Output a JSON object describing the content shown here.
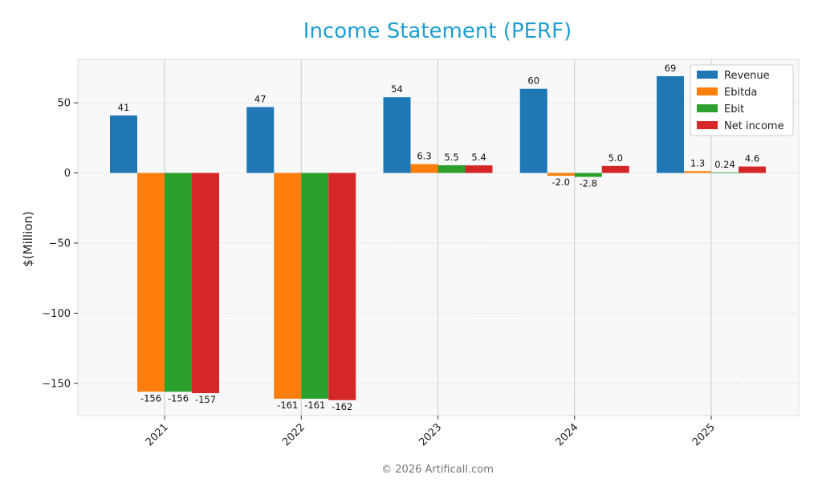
{
  "chart_data": {
    "type": "bar",
    "title": "Income Statement (PERF)",
    "xlabel": "",
    "ylabel": "$(Million)",
    "categories": [
      "2021",
      "2022",
      "2023",
      "2024",
      "2025"
    ],
    "series": [
      {
        "name": "Revenue",
        "color": "#1f77b4",
        "values": [
          41,
          47,
          54,
          60,
          69
        ],
        "labels": [
          "41",
          "47",
          "54",
          "60",
          "69"
        ]
      },
      {
        "name": "Ebitda",
        "color": "#ff7f0e",
        "values": [
          -156,
          -161,
          6.3,
          -2.0,
          1.3
        ],
        "labels": [
          "-156",
          "-161",
          "6.3",
          "-2.0",
          "1.3"
        ]
      },
      {
        "name": "Ebit",
        "color": "#2ca02c",
        "values": [
          -156,
          -161,
          5.5,
          -2.8,
          0.24
        ],
        "labels": [
          "-156",
          "-161",
          "5.5",
          "-2.8",
          "0.24"
        ]
      },
      {
        "name": "Net income",
        "color": "#d62728",
        "values": [
          -157,
          -162,
          5.4,
          5.0,
          4.6
        ],
        "labels": [
          "-157",
          "-162",
          "5.4",
          "5.0",
          "4.6"
        ]
      }
    ],
    "ylim": [
      -173,
      81
    ],
    "yticks": [
      50,
      0,
      -50,
      -100,
      -150
    ],
    "ytick_labels": [
      "50",
      "0",
      "−50",
      "−100",
      "−150"
    ],
    "grid": true,
    "legend_position": "top-right"
  },
  "footer": "© 2026 Artificall.com"
}
